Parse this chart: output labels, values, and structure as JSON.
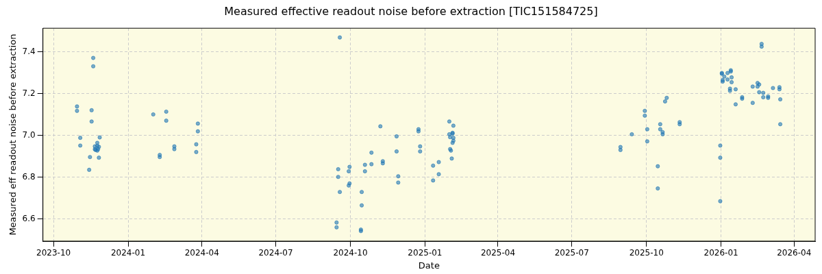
{
  "chart_data": {
    "type": "scatter",
    "title": "Measured effective readout noise before extraction [TIC151584725]",
    "xlabel": "Date",
    "ylabel": "Measured eff readout noise before extraction",
    "xlim": [
      "2023-09-18",
      "2026-04-27"
    ],
    "ylim": [
      6.494,
      7.512
    ],
    "xticks": [
      {
        "value": "2023-10-01",
        "label": "2023-10"
      },
      {
        "value": "2024-01-01",
        "label": "2024-01"
      },
      {
        "value": "2024-04-01",
        "label": "2024-04"
      },
      {
        "value": "2024-07-01",
        "label": "2024-07"
      },
      {
        "value": "2024-10-01",
        "label": "2024-10"
      },
      {
        "value": "2025-01-01",
        "label": "2025-01"
      },
      {
        "value": "2025-04-01",
        "label": "2025-04"
      },
      {
        "value": "2025-07-01",
        "label": "2025-07"
      },
      {
        "value": "2025-10-01",
        "label": "2025-10"
      },
      {
        "value": "2026-01-01",
        "label": "2026-01"
      },
      {
        "value": "2026-04-01",
        "label": "2026-04"
      }
    ],
    "yticks": [
      {
        "value": 6.6,
        "label": "6.6"
      },
      {
        "value": 6.8,
        "label": "6.8"
      },
      {
        "value": 7,
        "label": "7.0"
      },
      {
        "value": 7.2,
        "label": "7.2"
      },
      {
        "value": 7.4,
        "label": "7.4"
      }
    ],
    "grid": true,
    "legend": false,
    "marker": "circle",
    "series": [
      {
        "color": "#1f77b4",
        "x": [
          "2023-10-30",
          "2023-10-30",
          "2023-11-03",
          "2023-11-03",
          "2023-11-17",
          "2023-11-17",
          "2023-11-15",
          "2023-11-14",
          "2023-11-19",
          "2023-11-19",
          "2023-11-21",
          "2023-11-21",
          "2023-11-22",
          "2023-11-24",
          "2023-11-24",
          "2023-11-25",
          "2023-11-26",
          "2023-11-27",
          "2023-11-24",
          "2023-11-26",
          "2024-02-01",
          "2024-02-17",
          "2024-02-17",
          "2024-02-09",
          "2024-02-09",
          "2024-02-27",
          "2024-02-27",
          "2024-03-27",
          "2024-03-27",
          "2024-03-25",
          "2024-03-25",
          "2024-09-18",
          "2024-09-14",
          "2024-09-14",
          "2024-09-16",
          "2024-09-16",
          "2024-09-18",
          "2024-09-30",
          "2024-09-29",
          "2024-09-30",
          "2024-09-29",
          "2024-10-15",
          "2024-10-15",
          "2024-10-14",
          "2024-10-14",
          "2024-10-19",
          "2024-10-19",
          "2024-10-27",
          "2024-10-27",
          "2024-11-07",
          "2024-11-10",
          "2024-11-10",
          "2024-11-27",
          "2024-11-27",
          "2024-11-29",
          "2024-11-29",
          "2024-12-24",
          "2024-12-24",
          "2024-12-26",
          "2024-12-26",
          "2025-01-11",
          "2025-01-11",
          "2025-01-18",
          "2025-01-18",
          "2025-01-31",
          "2025-02-05",
          "2025-01-31",
          "2025-02-01",
          "2025-02-04",
          "2025-02-04",
          "2025-02-05",
          "2025-02-05",
          "2025-02-04",
          "2025-02-01",
          "2025-02-02",
          "2025-02-03",
          "2025-08-30",
          "2025-08-30",
          "2025-09-13",
          "2025-09-29",
          "2025-09-29",
          "2025-10-02",
          "2025-10-02",
          "2025-10-15",
          "2025-10-15",
          "2025-10-18",
          "2025-10-18",
          "2025-10-21",
          "2025-10-21",
          "2025-10-24",
          "2025-10-26",
          "2025-11-11",
          "2025-11-11",
          "2025-12-31",
          "2025-12-31",
          "2025-12-31",
          "2026-01-02",
          "2026-01-02",
          "2026-01-03",
          "2026-01-03",
          "2026-01-05",
          "2026-01-09",
          "2026-01-09",
          "2026-01-13",
          "2026-01-13",
          "2026-01-14",
          "2026-01-14",
          "2026-01-12",
          "2026-01-12",
          "2026-01-19",
          "2026-01-19",
          "2026-01-27",
          "2026-01-27",
          "2026-02-09",
          "2026-02-09",
          "2026-02-15",
          "2026-02-15",
          "2026-02-17",
          "2026-02-17",
          "2026-02-20",
          "2026-02-20",
          "2026-02-22",
          "2026-02-22",
          "2026-02-28",
          "2026-02-28",
          "2026-03-06",
          "2026-03-14",
          "2026-03-14",
          "2026-03-15",
          "2026-03-15"
        ],
        "values": [
          7.138,
          7.117,
          6.988,
          6.951,
          7.12,
          7.066,
          6.896,
          6.835,
          7.37,
          7.33,
          6.947,
          6.933,
          6.93,
          6.964,
          6.95,
          6.934,
          6.945,
          6.99,
          6.927,
          6.893,
          7.1,
          7.113,
          7.07,
          6.906,
          6.896,
          6.947,
          6.934,
          7.056,
          7.019,
          6.957,
          6.92,
          7.468,
          6.583,
          6.56,
          6.838,
          6.801,
          6.729,
          6.849,
          6.828,
          6.77,
          6.76,
          6.729,
          6.665,
          6.549,
          6.542,
          6.859,
          6.828,
          6.917,
          6.862,
          7.043,
          6.876,
          6.866,
          6.995,
          6.923,
          6.804,
          6.774,
          7.029,
          7.019,
          6.947,
          6.923,
          6.855,
          6.784,
          6.872,
          6.814,
          7.066,
          7.046,
          7.005,
          6.991,
          7.012,
          7.008,
          6.988,
          6.974,
          6.964,
          6.934,
          6.927,
          6.889,
          6.944,
          6.93,
          7.005,
          7.117,
          7.094,
          7.029,
          6.971,
          6.852,
          6.746,
          7.053,
          7.029,
          7.015,
          7.005,
          7.162,
          7.179,
          7.063,
          7.053,
          6.951,
          6.893,
          6.685,
          7.298,
          7.294,
          7.264,
          7.257,
          7.281,
          7.298,
          7.267,
          7.311,
          7.305,
          7.277,
          7.254,
          7.223,
          7.213,
          7.22,
          7.148,
          7.182,
          7.175,
          7.233,
          7.155,
          7.25,
          7.233,
          7.243,
          7.206,
          7.437,
          7.424,
          7.203,
          7.182,
          7.186,
          7.179,
          7.226,
          7.23,
          7.22,
          7.172,
          7.053
        ]
      }
    ]
  }
}
